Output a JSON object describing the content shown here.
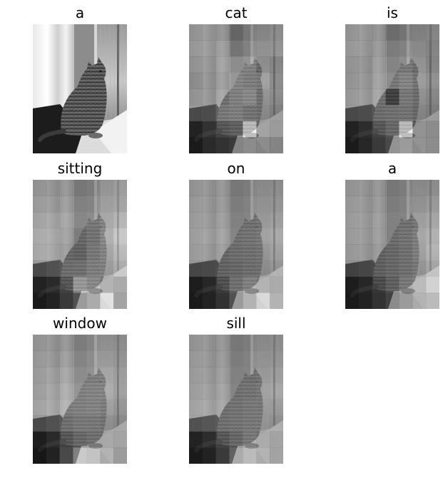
{
  "panels": [
    {
      "word": "a",
      "attention": []
    },
    {
      "word": "cat",
      "attention": [
        [
          0.35,
          0.4,
          0.38,
          0.3,
          0.42,
          0.45,
          0.5
        ],
        [
          0.38,
          0.42,
          0.45,
          0.4,
          0.48,
          0.5,
          0.52
        ],
        [
          0.35,
          0.4,
          0.48,
          0.55,
          0.6,
          0.45,
          0.4
        ],
        [
          0.3,
          0.38,
          0.45,
          0.62,
          0.58,
          0.55,
          0.42
        ],
        [
          0.35,
          0.4,
          0.5,
          0.6,
          0.65,
          0.5,
          0.45
        ],
        [
          0.4,
          0.42,
          0.55,
          0.58,
          0.52,
          0.48,
          0.42
        ],
        [
          0.15,
          0.25,
          0.35,
          0.4,
          0.95,
          0.45,
          0.4
        ],
        [
          0.1,
          0.2,
          0.25,
          0.3,
          0.35,
          0.3,
          0.25
        ]
      ]
    },
    {
      "word": "is",
      "attention": [
        [
          0.35,
          0.4,
          0.38,
          0.35,
          0.4,
          0.42,
          0.45
        ],
        [
          0.38,
          0.4,
          0.42,
          0.45,
          0.48,
          0.45,
          0.42
        ],
        [
          0.35,
          0.38,
          0.45,
          0.5,
          0.55,
          0.48,
          0.4
        ],
        [
          0.35,
          0.4,
          0.48,
          0.55,
          0.62,
          0.52,
          0.45
        ],
        [
          0.38,
          0.42,
          0.5,
          0.2,
          0.55,
          0.48,
          0.42
        ],
        [
          0.4,
          0.42,
          0.48,
          0.5,
          0.52,
          0.45,
          0.4
        ],
        [
          0.15,
          0.22,
          0.35,
          0.45,
          0.95,
          0.35,
          0.3
        ],
        [
          0.1,
          0.18,
          0.3,
          0.4,
          0.45,
          0.35,
          0.3
        ]
      ]
    },
    {
      "word": "sitting",
      "attention": [
        [
          0.35,
          0.38,
          0.4,
          0.42,
          0.45,
          0.55,
          0.6
        ],
        [
          0.4,
          0.42,
          0.45,
          0.48,
          0.5,
          0.58,
          0.62
        ],
        [
          0.45,
          0.48,
          0.5,
          0.52,
          0.55,
          0.62,
          0.7
        ],
        [
          0.5,
          0.52,
          0.48,
          0.45,
          0.52,
          0.65,
          0.8
        ],
        [
          0.48,
          0.5,
          0.45,
          0.42,
          0.55,
          0.62,
          0.75
        ],
        [
          0.4,
          0.45,
          0.48,
          0.5,
          0.58,
          0.6,
          0.7
        ],
        [
          0.15,
          0.2,
          0.35,
          0.75,
          0.65,
          0.55,
          0.5
        ],
        [
          0.1,
          0.15,
          0.3,
          0.45,
          0.55,
          0.85,
          0.45
        ]
      ]
    },
    {
      "word": "on",
      "attention": [
        [
          0.35,
          0.38,
          0.4,
          0.42,
          0.45,
          0.48,
          0.5
        ],
        [
          0.38,
          0.4,
          0.42,
          0.45,
          0.48,
          0.5,
          0.52
        ],
        [
          0.4,
          0.42,
          0.45,
          0.48,
          0.5,
          0.52,
          0.55
        ],
        [
          0.42,
          0.45,
          0.48,
          0.5,
          0.52,
          0.55,
          0.6
        ],
        [
          0.4,
          0.42,
          0.45,
          0.48,
          0.5,
          0.52,
          0.58
        ],
        [
          0.38,
          0.4,
          0.42,
          0.45,
          0.48,
          0.5,
          0.55
        ],
        [
          0.12,
          0.18,
          0.3,
          0.5,
          0.6,
          0.55,
          0.5
        ],
        [
          0.1,
          0.15,
          0.25,
          0.45,
          0.6,
          0.8,
          0.55
        ]
      ]
    },
    {
      "word": "a",
      "attention": [
        [
          0.35,
          0.38,
          0.4,
          0.42,
          0.45,
          0.48,
          0.5
        ],
        [
          0.38,
          0.4,
          0.42,
          0.45,
          0.48,
          0.5,
          0.55
        ],
        [
          0.4,
          0.42,
          0.45,
          0.48,
          0.5,
          0.55,
          0.6
        ],
        [
          0.4,
          0.42,
          0.45,
          0.48,
          0.52,
          0.58,
          0.65
        ],
        [
          0.38,
          0.4,
          0.42,
          0.45,
          0.5,
          0.58,
          0.7
        ],
        [
          0.35,
          0.38,
          0.4,
          0.45,
          0.5,
          0.55,
          0.65
        ],
        [
          0.12,
          0.18,
          0.28,
          0.4,
          0.55,
          0.6,
          0.75
        ],
        [
          0.1,
          0.15,
          0.25,
          0.35,
          0.45,
          0.55,
          0.6
        ]
      ]
    },
    {
      "word": "window",
      "attention": [
        [
          0.35,
          0.38,
          0.4,
          0.45,
          0.5,
          0.52,
          0.5
        ],
        [
          0.38,
          0.4,
          0.45,
          0.5,
          0.55,
          0.55,
          0.52
        ],
        [
          0.4,
          0.45,
          0.5,
          0.55,
          0.58,
          0.6,
          0.55
        ],
        [
          0.42,
          0.48,
          0.55,
          0.6,
          0.62,
          0.62,
          0.55
        ],
        [
          0.45,
          0.5,
          0.58,
          0.6,
          0.62,
          0.58,
          0.52
        ],
        [
          0.4,
          0.45,
          0.5,
          0.55,
          0.55,
          0.52,
          0.48
        ],
        [
          0.12,
          0.2,
          0.35,
          0.45,
          0.5,
          0.48,
          0.45
        ],
        [
          0.08,
          0.15,
          0.4,
          0.75,
          0.7,
          0.55,
          0.4
        ]
      ]
    },
    {
      "word": "sill",
      "attention": [
        [
          0.35,
          0.38,
          0.4,
          0.42,
          0.45,
          0.48,
          0.5
        ],
        [
          0.38,
          0.4,
          0.42,
          0.45,
          0.48,
          0.5,
          0.52
        ],
        [
          0.4,
          0.42,
          0.45,
          0.48,
          0.5,
          0.52,
          0.55
        ],
        [
          0.42,
          0.45,
          0.48,
          0.5,
          0.52,
          0.55,
          0.58
        ],
        [
          0.45,
          0.48,
          0.5,
          0.52,
          0.55,
          0.55,
          0.55
        ],
        [
          0.45,
          0.48,
          0.5,
          0.52,
          0.55,
          0.55,
          0.52
        ],
        [
          0.15,
          0.22,
          0.35,
          0.45,
          0.55,
          0.5,
          0.45
        ],
        [
          0.1,
          0.15,
          0.3,
          0.55,
          0.65,
          0.55,
          0.45
        ]
      ]
    }
  ]
}
